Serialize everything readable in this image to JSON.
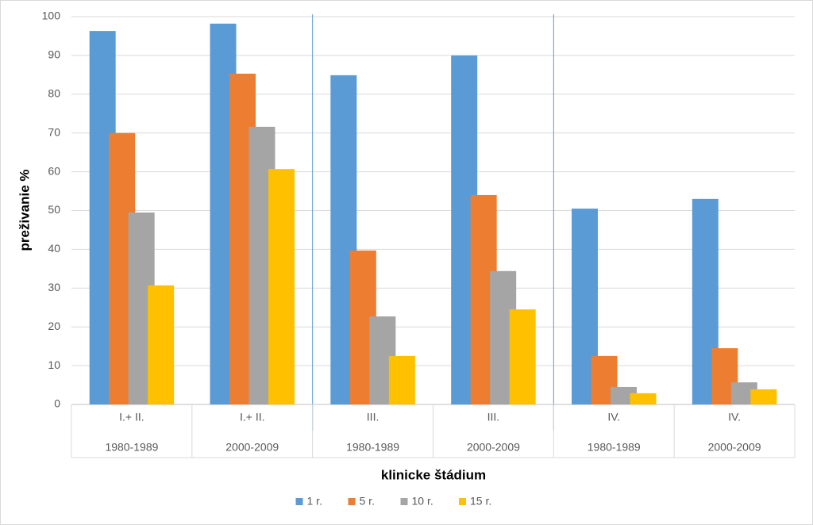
{
  "chart_data": {
    "type": "bar",
    "x_label": "klinicke štádium",
    "y_label": "preživanie %",
    "categories": [
      {
        "stage": "I.+ II.",
        "period": "1980-1989"
      },
      {
        "stage": "I.+ II.",
        "period": "2000-2009"
      },
      {
        "stage": "III.",
        "period": "1980-1989"
      },
      {
        "stage": "III.",
        "period": "2000-2009"
      },
      {
        "stage": "IV.",
        "period": "1980-1989"
      },
      {
        "stage": "IV.",
        "period": "2000-2009"
      }
    ],
    "series": [
      {
        "name": "1 r.",
        "color": "#5b9bd5",
        "values": [
          96.3,
          98.2,
          84.9,
          90,
          50.5,
          53
        ]
      },
      {
        "name": "5 r.",
        "color": "#ed7d31",
        "values": [
          70,
          85.3,
          39.7,
          54,
          12.5,
          14.5
        ]
      },
      {
        "name": "10 r.",
        "color": "#a5a5a5",
        "values": [
          49.5,
          71.6,
          22.7,
          34.4,
          4.5,
          5.7
        ]
      },
      {
        "name": "15 r.",
        "color": "#ffc000",
        "values": [
          30.7,
          60.7,
          12.5,
          24.5,
          2.9,
          3.9
        ]
      }
    ],
    "ylim": [
      0,
      100
    ],
    "yticks": [
      0,
      10,
      20,
      30,
      40,
      50,
      60,
      70,
      80,
      90,
      100
    ],
    "grid": true,
    "legend": "bottom"
  }
}
